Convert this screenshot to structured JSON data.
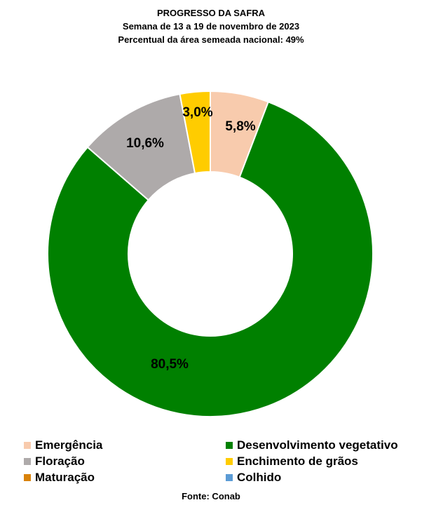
{
  "header": {
    "title": "PROGRESSO DA SAFRA",
    "subtitle": "Semana de 13 a 19 de novembro de 2023",
    "subtitle2": "Percentual da área semeada nacional: 49%"
  },
  "chart_data": {
    "type": "pie",
    "variant": "donut",
    "start": "12 o'clock",
    "direction": "clockwise",
    "slices": [
      {
        "name": "Emergência",
        "value": 5.8,
        "label": "5,8%",
        "color": "#F8CBAD"
      },
      {
        "name": "Desenvolvimento vegetativo",
        "value": 80.5,
        "label": "80,5%",
        "color": "#008000"
      },
      {
        "name": "Floração",
        "value": 10.6,
        "label": "10,6%",
        "color": "#AEAAAA"
      },
      {
        "name": "Enchimento de grãos",
        "value": 3.0,
        "label": "3,0%",
        "color": "#FFCC00"
      },
      {
        "name": "Maturação",
        "value": 0,
        "label": "",
        "color": "#D9820A"
      },
      {
        "name": "Colhido",
        "value": 0,
        "label": "",
        "color": "#5B9BD5"
      }
    ],
    "legend_position": "bottom"
  },
  "source": "Fonte: Conab"
}
